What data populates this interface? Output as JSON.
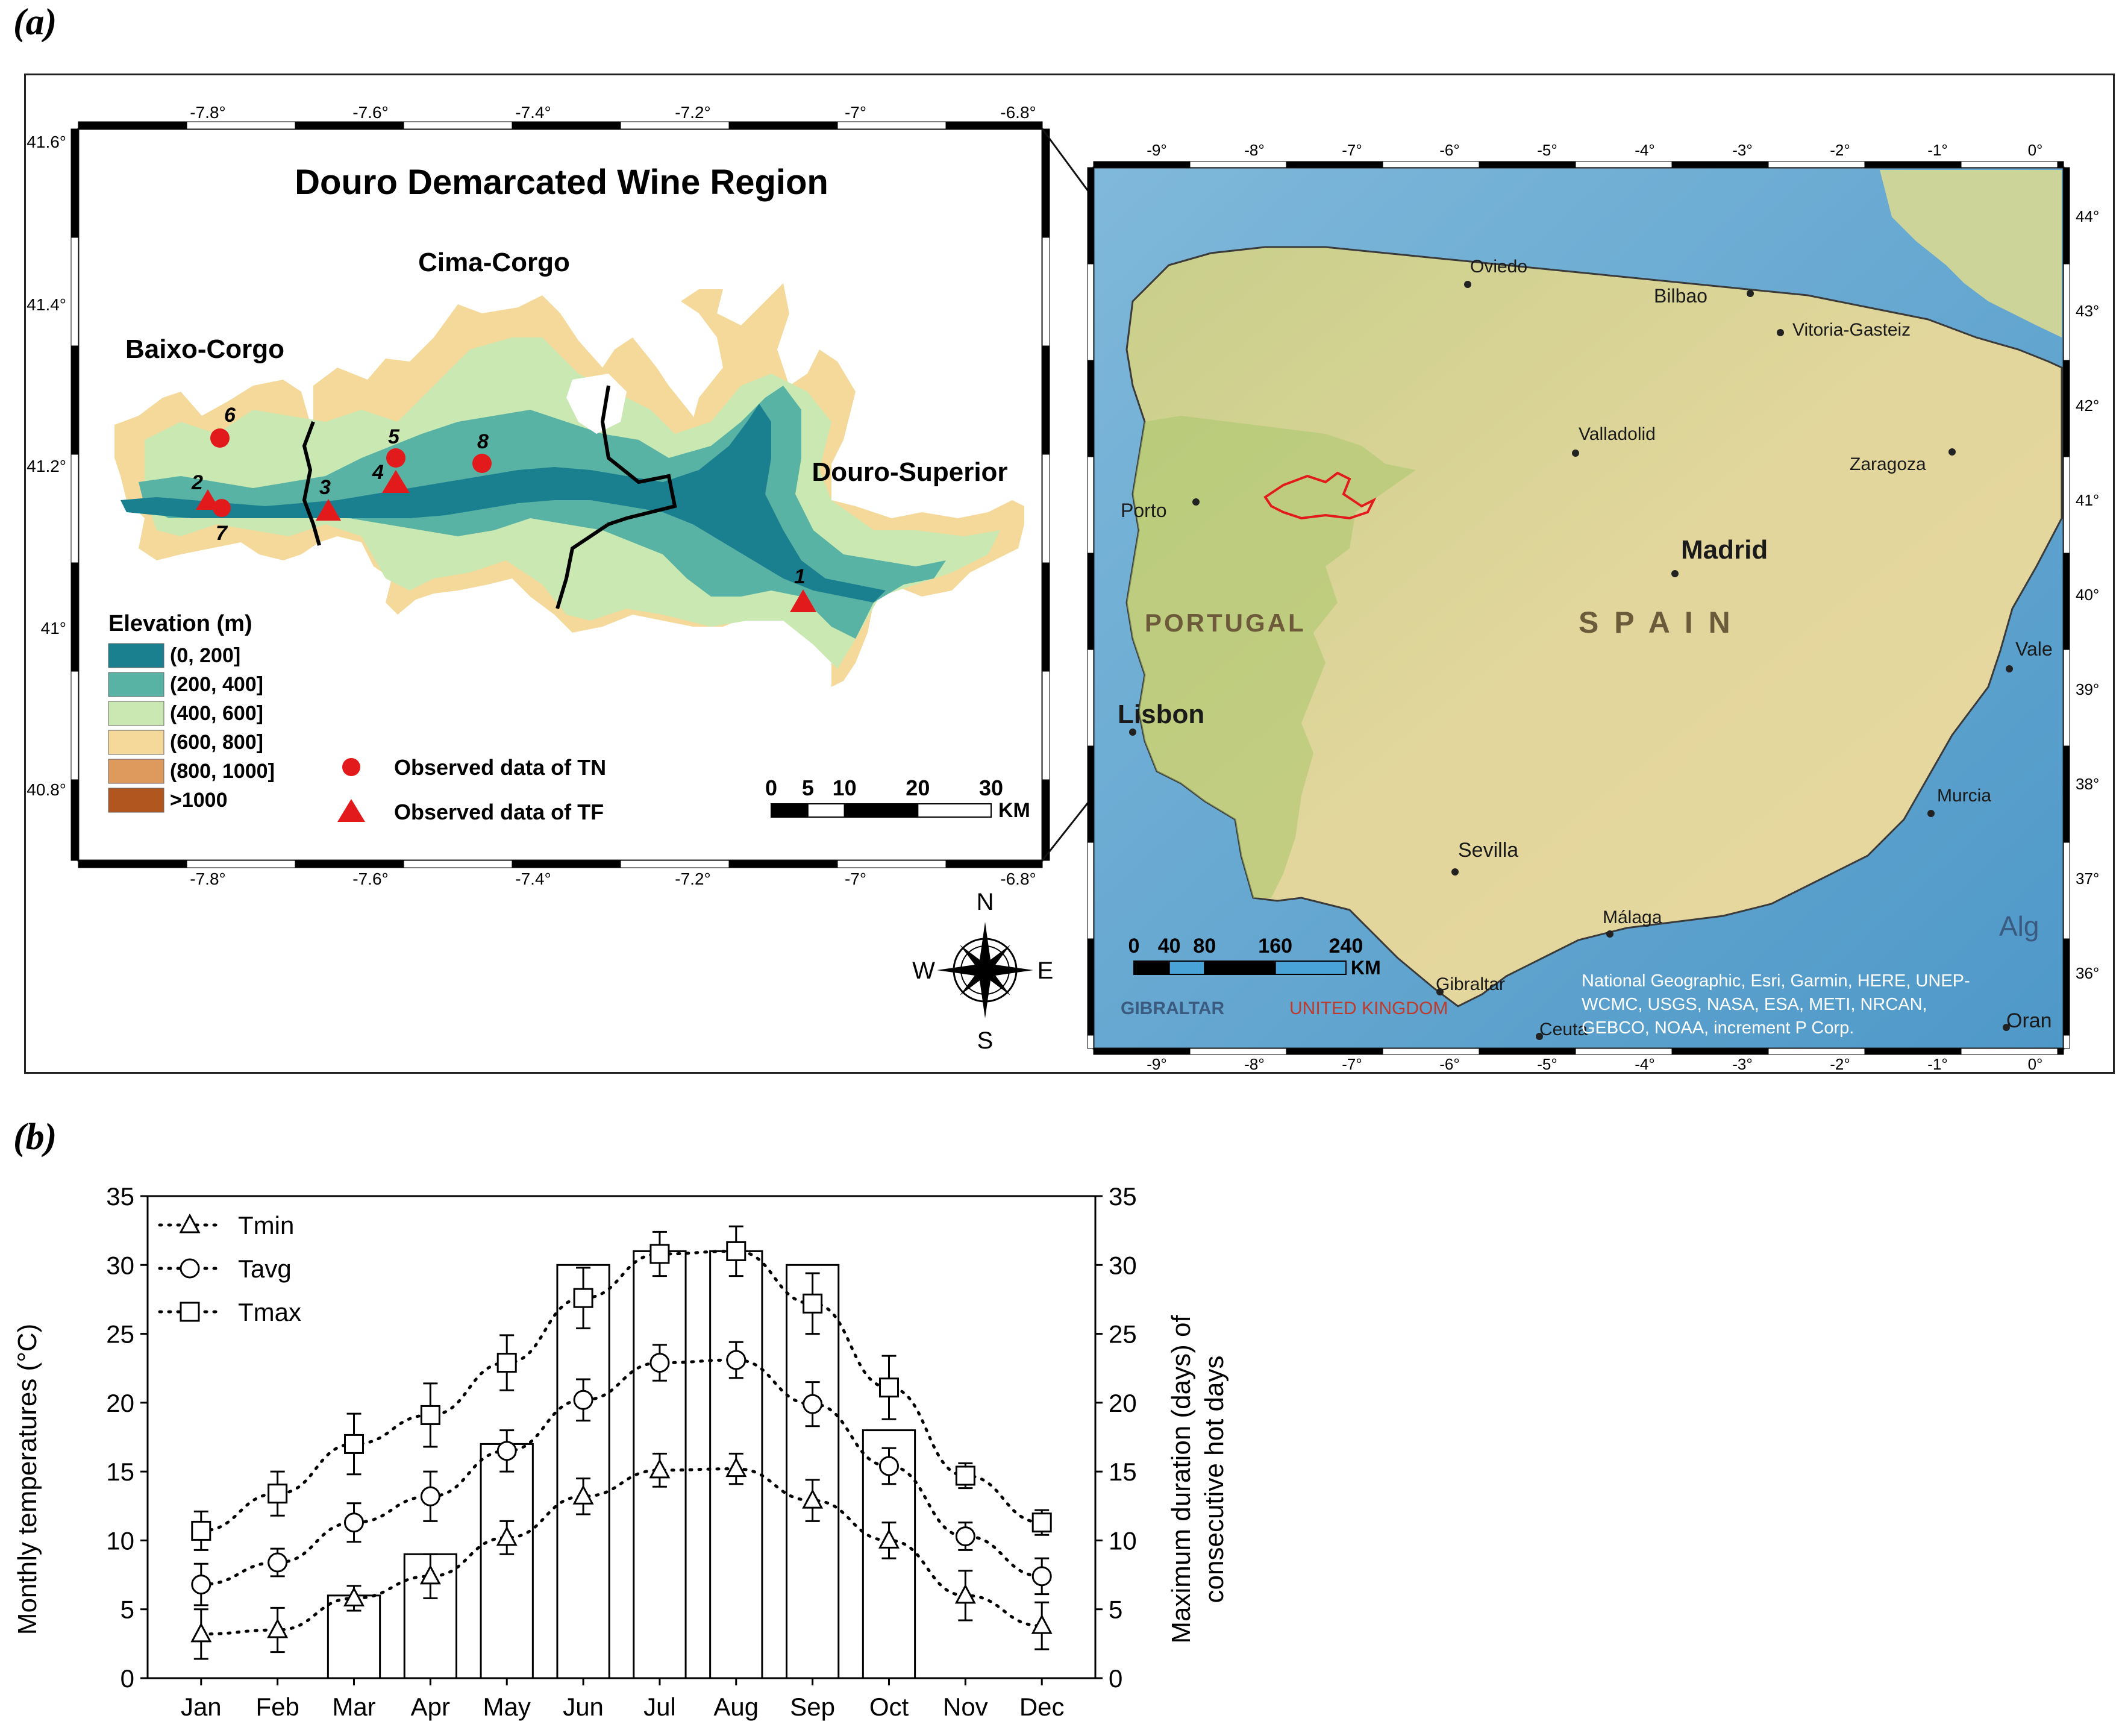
{
  "panel_a": {
    "label": "(a)",
    "douro_map": {
      "title": "Douro Demarcated Wine Region",
      "x_ticks": [
        "-7.8°",
        "-7.6°",
        "-7.4°",
        "-7.2°",
        "-7°",
        "-6.8°"
      ],
      "y_ticks": [
        "41.6°",
        "41.4°",
        "41.2°",
        "41°",
        "40.8°"
      ],
      "subregions": [
        "Baixo-Corgo",
        "Cima-Corgo",
        "Douro-Superior"
      ],
      "legend_title": "Elevation (m)",
      "elevation_classes": [
        {
          "label": "(0, 200]",
          "color": "#1a7f8e"
        },
        {
          "label": "(200, 400]",
          "color": "#58b3a4"
        },
        {
          "label": "(400, 600]",
          "color": "#c9e8b2"
        },
        {
          "label": "(600, 800]",
          "color": "#f4d99a"
        },
        {
          "label": "(800, 1000]",
          "color": "#dd9a5c"
        },
        {
          "label": ">1000",
          "color": "#b0561e"
        }
      ],
      "symbol_legend": [
        {
          "label": "Observed data of TN",
          "shape": "circle",
          "color": "#e31a1c"
        },
        {
          "label": "Observed data of TF",
          "shape": "triangle",
          "color": "#e31a1c"
        }
      ],
      "stations": [
        "1",
        "2",
        "3",
        "4",
        "5",
        "6",
        "7",
        "8"
      ],
      "scale_bar_labels": [
        "0",
        "5",
        "10",
        "20",
        "30"
      ],
      "scale_unit": "KM"
    },
    "compass": {
      "n": "N",
      "s": "S",
      "e": "E",
      "w": "W"
    },
    "iberia_map": {
      "x_ticks": [
        "-9°",
        "-8°",
        "-7°",
        "-6°",
        "-5°",
        "-4°",
        "-3°",
        "-2°",
        "-1°",
        "0°"
      ],
      "y_ticks": [
        "44°",
        "43°",
        "42°",
        "41°",
        "40°",
        "39°",
        "38°",
        "37°",
        "36°"
      ],
      "cities": [
        "Oviedo",
        "Bilbao",
        "Vitoria-Gasteiz",
        "Valladolid",
        "Zaragoza",
        "Porto",
        "Madrid",
        "Lisbon",
        "Sevilla",
        "Murcia",
        "Málaga",
        "Gibraltar",
        "Ceuta",
        "Oran",
        "Vale"
      ],
      "countries": [
        "PORTUGAL",
        "S P A I N"
      ],
      "other_labels": [
        "GIBRALTAR",
        "UNITED KINGDOM",
        "Alg"
      ],
      "scale_bar_labels": [
        "0",
        "40",
        "80",
        "160",
        "240"
      ],
      "scale_unit": "KM",
      "attribution": [
        "National Geographic, Esri, Garmin, HERE, UNEP-",
        "WCMC, USGS, NASA, ESA, METI, NRCAN,",
        "GEBCO, NOAA, increment P Corp."
      ]
    }
  },
  "panel_b": {
    "label": "(b)",
    "chart_data": {
      "type": "line",
      "categories": [
        "Jan",
        "Feb",
        "Mar",
        "Apr",
        "May",
        "Jun",
        "Jul",
        "Aug",
        "Sep",
        "Oct",
        "Nov",
        "Dec"
      ],
      "ylabel_left": "Monthly temperatures (°C)",
      "ylabel_right": [
        "Maximum duration (days) of",
        "consecutive hot days"
      ],
      "ylim_left": [
        0,
        35
      ],
      "ylim_right": [
        0,
        35
      ],
      "yticks": [
        0,
        5,
        10,
        15,
        20,
        25,
        30,
        35
      ],
      "legend_position": "top-left",
      "grid": false,
      "series": [
        {
          "name": "Tmin",
          "marker": "triangle",
          "values": [
            3.2,
            3.5,
            5.8,
            7.4,
            10.2,
            13.2,
            15.1,
            15.2,
            12.9,
            10.0,
            6.0,
            3.8
          ],
          "err": [
            1.8,
            1.6,
            0.9,
            1.6,
            1.2,
            1.3,
            1.2,
            1.1,
            1.5,
            1.3,
            1.8,
            1.7
          ]
        },
        {
          "name": "Tavg",
          "marker": "circle",
          "values": [
            6.8,
            8.4,
            11.3,
            13.2,
            16.5,
            20.2,
            22.9,
            23.1,
            19.9,
            15.4,
            10.3,
            7.4
          ],
          "err": [
            1.5,
            1.0,
            1.4,
            1.8,
            1.5,
            1.5,
            1.3,
            1.3,
            1.6,
            1.3,
            1.0,
            1.3
          ]
        },
        {
          "name": "Tmax",
          "marker": "square",
          "values": [
            10.7,
            13.4,
            17.0,
            19.1,
            22.9,
            27.6,
            30.8,
            31.0,
            27.2,
            21.1,
            14.7,
            11.3
          ],
          "err": [
            1.4,
            1.6,
            2.2,
            2.3,
            2.0,
            2.2,
            1.6,
            1.8,
            2.2,
            2.3,
            0.9,
            0.9
          ]
        }
      ],
      "bars": {
        "name": "Maximum duration of consecutive hot days",
        "axis": "right",
        "values": [
          0,
          0,
          6,
          9,
          17,
          30,
          31,
          31,
          30,
          18,
          0,
          0
        ]
      }
    }
  }
}
